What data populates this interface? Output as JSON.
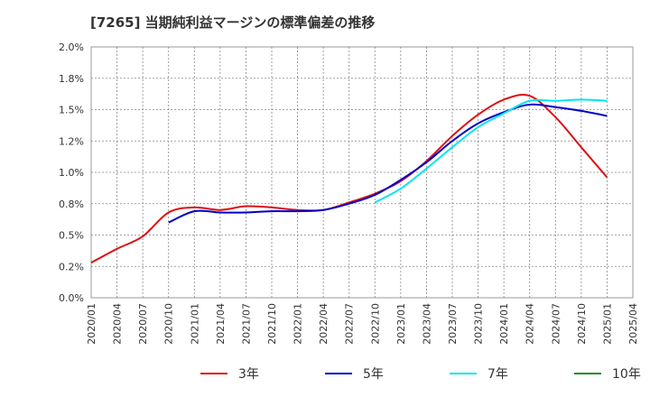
{
  "chart_data": {
    "type": "line",
    "title": "[7265]  当期純利益マージンの標準偏差の推移",
    "xlabel": "",
    "ylabel": "",
    "ylim": [
      0,
      2.0
    ],
    "y_ticks": [
      "0.0%",
      "0.2%",
      "0.5%",
      "0.8%",
      "1.0%",
      "1.2%",
      "1.5%",
      "1.8%",
      "2.0%"
    ],
    "y_tick_values": [
      0,
      0.25,
      0.5,
      0.75,
      1.0,
      1.25,
      1.5,
      1.75,
      2.0
    ],
    "x_ticks": [
      "2020/01",
      "2020/04",
      "2020/07",
      "2020/10",
      "2021/01",
      "2021/04",
      "2021/07",
      "2021/10",
      "2022/01",
      "2022/04",
      "2022/07",
      "2022/10",
      "2023/01",
      "2023/04",
      "2023/07",
      "2023/10",
      "2024/01",
      "2024/04",
      "2024/07",
      "2024/10",
      "2025/01",
      "2025/04"
    ],
    "grid": true,
    "legend_position": "bottom",
    "series": [
      {
        "name": "3年",
        "color": "#dd1111",
        "x": [
          "2020/01",
          "2020/04",
          "2020/07",
          "2020/10",
          "2021/01",
          "2021/04",
          "2021/07",
          "2021/10",
          "2022/01",
          "2022/04",
          "2022/07",
          "2022/10",
          "2023/01",
          "2023/04",
          "2023/07",
          "2023/10",
          "2024/01",
          "2024/04",
          "2024/07",
          "2024/10",
          "2025/01"
        ],
        "values": [
          0.28,
          0.39,
          0.49,
          0.68,
          0.72,
          0.7,
          0.73,
          0.72,
          0.7,
          0.7,
          0.76,
          0.83,
          0.93,
          1.09,
          1.29,
          1.46,
          1.58,
          1.61,
          1.44,
          1.2,
          0.96
        ]
      },
      {
        "name": "5年",
        "color": "#0000cc",
        "x": [
          "2020/10",
          "2021/01",
          "2021/04",
          "2021/07",
          "2021/10",
          "2022/01",
          "2022/04",
          "2022/07",
          "2022/10",
          "2023/01",
          "2023/04",
          "2023/07",
          "2023/10",
          "2024/01",
          "2024/04",
          "2024/07",
          "2024/10",
          "2025/01"
        ],
        "values": [
          0.6,
          0.69,
          0.68,
          0.68,
          0.69,
          0.69,
          0.7,
          0.75,
          0.82,
          0.94,
          1.08,
          1.25,
          1.39,
          1.48,
          1.54,
          1.52,
          1.49,
          1.45
        ]
      },
      {
        "name": "7年",
        "color": "#00e5ee",
        "x": [
          "2022/10",
          "2023/01",
          "2023/04",
          "2023/07",
          "2023/10",
          "2024/01",
          "2024/04",
          "2024/07",
          "2024/10",
          "2025/01"
        ],
        "values": [
          0.76,
          0.87,
          1.03,
          1.2,
          1.36,
          1.47,
          1.57,
          1.57,
          1.58,
          1.57
        ]
      },
      {
        "name": "10年",
        "color": "#228b22",
        "x": [],
        "values": []
      }
    ]
  }
}
